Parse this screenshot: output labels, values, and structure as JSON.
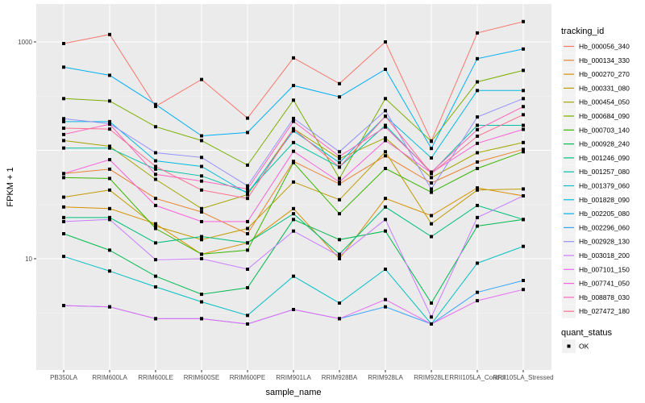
{
  "chart_data": {
    "type": "line",
    "title": "",
    "xlabel": "sample_name",
    "ylabel": "FPKM + 1",
    "yscale": "log10",
    "ylim": [
      2.4,
      2400
    ],
    "y_ticks": [
      10,
      1000
    ],
    "y_tick_labels": [
      "10",
      "1000"
    ],
    "grid": true,
    "categories": [
      "PB350LA",
      "RRIM600LA",
      "RRIM600LE",
      "RRIM600SE",
      "RRIM600PE",
      "RRIM901LA",
      "RRIM928BA",
      "RRIM928LA",
      "RRIM928LE",
      "RRII105LA_Control",
      "RRII105LA_Stressed"
    ],
    "legend": {
      "position": "right",
      "color_title": "tracking_id",
      "shape_title": "quant_status",
      "shape_entries": [
        "OK"
      ]
    },
    "series": [
      {
        "name": "Hb_000056_340",
        "color": "#F8766D",
        "values": [
          966,
          1170,
          254,
          450,
          198,
          712,
          412,
          1000,
          122,
          1210,
          1540
        ]
      },
      {
        "name": "Hb_000134_330",
        "color": "#EA8331",
        "values": [
          61,
          67,
          36,
          27,
          17,
          79,
          49,
          89,
          50,
          78,
          102
        ]
      },
      {
        "name": "Hb_000270_270",
        "color": "#D89000",
        "values": [
          30,
          29,
          21,
          11,
          14,
          29,
          10,
          36,
          25,
          45,
          38
        ]
      },
      {
        "name": "Hb_000331_080",
        "color": "#C09B00",
        "values": [
          37,
          43,
          20,
          15,
          19,
          51,
          35,
          97,
          21,
          43,
          44
        ]
      },
      {
        "name": "Hb_000454_050",
        "color": "#A3A500",
        "values": [
          123,
          109,
          54,
          29,
          39,
          158,
          84,
          130,
          56,
          95,
          118
        ]
      },
      {
        "name": "Hb_000684_090",
        "color": "#7CAE00",
        "values": [
          300,
          285,
          165,
          123,
          73,
          290,
          55,
          300,
          121,
          428,
          546
        ]
      },
      {
        "name": "Hb_000703_140",
        "color": "#39B600",
        "values": [
          56,
          55,
          19,
          11,
          12,
          77,
          26,
          68,
          41,
          68,
          97
        ]
      },
      {
        "name": "Hb_000928_240",
        "color": "#00BB4E",
        "values": [
          17,
          12,
          6.9,
          4.7,
          5.4,
          23,
          15,
          18,
          3.9,
          20,
          23
        ]
      },
      {
        "name": "Hb_001246_090",
        "color": "#00BF7D",
        "values": [
          24,
          24,
          14,
          16,
          14,
          26,
          11,
          30,
          16,
          31,
          23
        ]
      },
      {
        "name": "Hb_001257_080",
        "color": "#00C1A3",
        "values": [
          105,
          105,
          67,
          58,
          41,
          118,
          70,
          170,
          62,
          170,
          170
        ]
      },
      {
        "name": "Hb_001379_060",
        "color": "#00BFC4",
        "values": [
          10.5,
          7.7,
          5.5,
          4.0,
          3.0,
          6.9,
          3.9,
          8.0,
          2.5,
          9.1,
          13
        ]
      },
      {
        "name": "Hb_001828_090",
        "color": "#00BAE0",
        "values": [
          184,
          184,
          80,
          71,
          40,
          151,
          77,
          206,
          85,
          356,
          356
        ]
      },
      {
        "name": "Hb_002205_080",
        "color": "#00B0F6",
        "values": [
          585,
          492,
          265,
          136,
          146,
          396,
          311,
          559,
          104,
          700,
          860
        ]
      },
      {
        "name": "Hb_002296_060",
        "color": "#35A2FF",
        "values": [
          3.7,
          3.6,
          2.8,
          2.8,
          2.5,
          3.4,
          2.8,
          3.6,
          2.5,
          4.9,
          6.3
        ]
      },
      {
        "name": "Hb_002928_130",
        "color": "#9590FF",
        "values": [
          196,
          176,
          95,
          86,
          47,
          197,
          97,
          232,
          44,
          203,
          300
        ]
      },
      {
        "name": "Hb_003018_200",
        "color": "#C77CFF",
        "values": [
          22,
          23,
          9.8,
          10,
          8.0,
          18,
          10.6,
          23,
          2.9,
          24,
          38
        ]
      },
      {
        "name": "Hb_007101_150",
        "color": "#E76BF3",
        "values": [
          3.7,
          3.6,
          2.8,
          2.8,
          2.5,
          3.4,
          2.8,
          4.2,
          2.5,
          4.1,
          5.2
        ]
      },
      {
        "name": "Hb_007741_050",
        "color": "#FA62DB",
        "values": [
          61,
          82,
          31,
          22,
          22,
          98,
          51,
          123,
          62,
          116,
          156
        ]
      },
      {
        "name": "Hb_008878_030",
        "color": "#FF62BC",
        "values": [
          140,
          174,
          60,
          52,
          44,
          185,
          88,
          164,
          63,
          155,
          253
        ]
      },
      {
        "name": "Hb_027472_180",
        "color": "#FF6C91",
        "values": [
          160,
          157,
          71,
          43,
          36,
          158,
          70,
          206,
          61,
          135,
          213
        ]
      }
    ]
  }
}
